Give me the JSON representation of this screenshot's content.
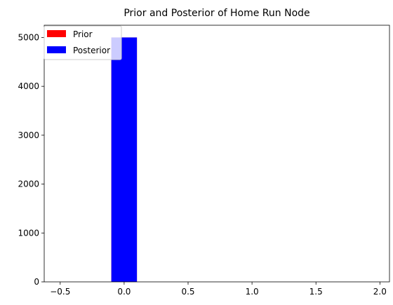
{
  "chart_data": {
    "type": "bar",
    "title": "Prior and Posterior of Home Run Node",
    "xlabel": "",
    "ylabel": "",
    "xlim": [
      -0.625,
      2.075
    ],
    "ylim": [
      0,
      5250
    ],
    "xticks": [
      -0.5,
      0.0,
      0.5,
      1.0,
      1.5,
      2.0
    ],
    "xtick_labels": [
      "−0.5",
      "0.0",
      "0.5",
      "1.0",
      "1.5",
      "2.0"
    ],
    "yticks": [
      0,
      1000,
      2000,
      3000,
      4000,
      5000
    ],
    "ytick_labels": [
      "0",
      "1000",
      "2000",
      "3000",
      "4000",
      "5000"
    ],
    "grid": false,
    "legend_position": "top-left",
    "series": [
      {
        "name": "Prior",
        "color": "#ff0000",
        "bars": [
          {
            "x0": -0.1,
            "x1": 0.1,
            "value": 5000
          }
        ]
      },
      {
        "name": "Posterior",
        "color": "#0000ff",
        "bars": [
          {
            "x0": -0.1,
            "x1": 0.1,
            "value": 5000
          }
        ]
      }
    ]
  }
}
